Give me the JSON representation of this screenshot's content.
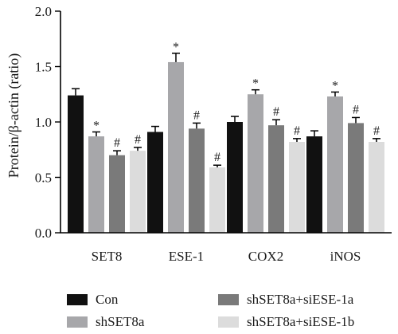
{
  "chart_data": {
    "type": "bar",
    "ylabel": "Protein/β-actin (ratio)",
    "ylim": [
      0,
      2.0
    ],
    "yticks": [
      "0.0",
      "0.5",
      "1.0",
      "1.5",
      "2.0"
    ],
    "categories": [
      "SET8",
      "ESE-1",
      "COX2",
      "iNOS"
    ],
    "series": [
      {
        "name": "Con",
        "color": "#111111",
        "values": [
          1.24,
          0.91,
          1.0,
          0.87
        ],
        "errors": [
          0.06,
          0.05,
          0.05,
          0.05
        ],
        "annotations": [
          "",
          "",
          "",
          ""
        ]
      },
      {
        "name": "shSET8a",
        "color": "#a7a7aa",
        "values": [
          0.87,
          1.54,
          1.25,
          1.23
        ],
        "errors": [
          0.04,
          0.08,
          0.04,
          0.04
        ],
        "annotations": [
          "*",
          "*",
          "*",
          "*"
        ]
      },
      {
        "name": "shSET8a+siESE-1a",
        "color": "#7a7a7a",
        "values": [
          0.7,
          0.94,
          0.97,
          0.99
        ],
        "errors": [
          0.04,
          0.05,
          0.05,
          0.05
        ],
        "annotations": [
          "#",
          "#",
          "#",
          "#"
        ]
      },
      {
        "name": "shSET8a+siESE-1b",
        "color": "#dcdcdc",
        "values": [
          0.74,
          0.59,
          0.82,
          0.82
        ],
        "errors": [
          0.03,
          0.02,
          0.03,
          0.03
        ],
        "annotations": [
          "#",
          "#",
          "#",
          "#"
        ]
      }
    ],
    "legend_position": "bottom"
  }
}
